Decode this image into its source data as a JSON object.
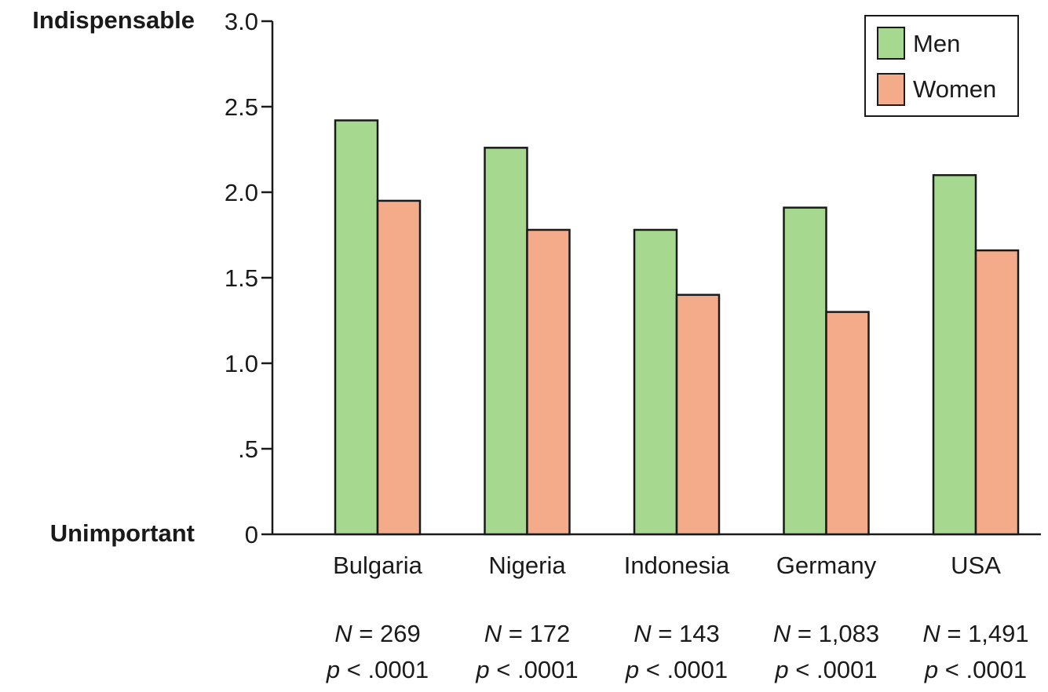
{
  "chart_data": {
    "type": "bar",
    "categories": [
      "Bulgaria",
      "Nigeria",
      "Indonesia",
      "Germany",
      "USA"
    ],
    "series": [
      {
        "name": "Men",
        "values": [
          2.42,
          2.26,
          1.78,
          1.91,
          2.1
        ]
      },
      {
        "name": "Women",
        "values": [
          1.95,
          1.78,
          1.4,
          1.3,
          1.66
        ]
      }
    ],
    "colors": {
      "Men": "#a6d98f",
      "Women": "#f4ab8a"
    },
    "ylim": [
      0,
      3.0
    ],
    "yticks": [
      {
        "value": 3.0,
        "label": "3.0"
      },
      {
        "value": 2.5,
        "label": "2.5"
      },
      {
        "value": 2.0,
        "label": "2.0"
      },
      {
        "value": 1.5,
        "label": "1.5"
      },
      {
        "value": 1.0,
        "label": "1.0"
      },
      {
        "value": 0.5,
        "label": ".5"
      },
      {
        "value": 0,
        "label": "0"
      }
    ],
    "y_top_label": "Indispensable",
    "y_bottom_label": "Unimportant",
    "sample_stats": [
      {
        "n": "269",
        "p": ".0001"
      },
      {
        "n": "172",
        "p": ".0001"
      },
      {
        "n": "143",
        "p": ".0001"
      },
      {
        "n": "1,083",
        "p": ".0001"
      },
      {
        "n": "1,491",
        "p": ".0001"
      }
    ],
    "legend_position": "top-right",
    "grid": false
  }
}
